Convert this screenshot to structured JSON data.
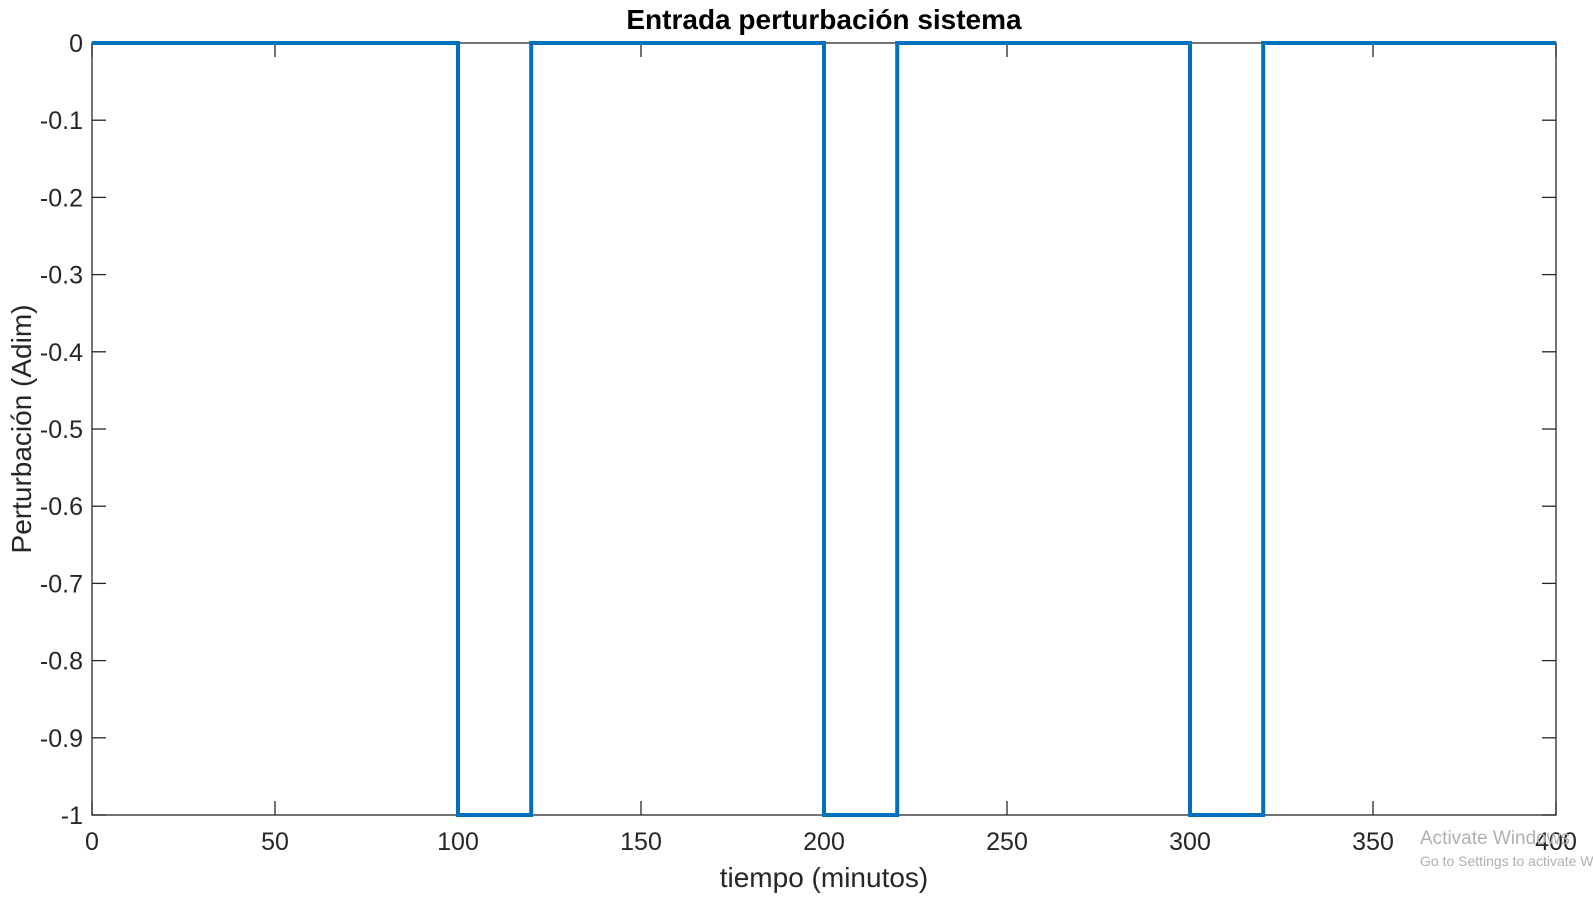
{
  "chart_data": {
    "type": "line",
    "title": "Entrada perturbación sistema",
    "xlabel": "tiempo (minutos)",
    "ylabel": "Perturbación (Adim)",
    "xlim": [
      0,
      400
    ],
    "ylim": [
      -1,
      0
    ],
    "x_ticks": [
      0,
      50,
      100,
      150,
      200,
      250,
      300,
      350,
      400
    ],
    "x_tick_labels": [
      "0",
      "50",
      "100",
      "150",
      "200",
      "250",
      "300",
      "350",
      "400"
    ],
    "y_ticks": [
      0,
      -0.1,
      -0.2,
      -0.3,
      -0.4,
      -0.5,
      -0.6,
      -0.7,
      -0.8,
      -0.9,
      -1
    ],
    "y_tick_labels": [
      "0",
      "-0.1",
      "-0.2",
      "-0.3",
      "-0.4",
      "-0.5",
      "-0.6",
      "-0.7",
      "-0.8",
      "-0.9",
      "-1"
    ],
    "grid": false,
    "series": [
      {
        "color": "#0072BD",
        "x": [
          0,
          100,
          100,
          120,
          120,
          200,
          200,
          220,
          220,
          300,
          300,
          320,
          320,
          400
        ],
        "y": [
          0,
          0,
          -1,
          -1,
          0,
          0,
          -1,
          -1,
          0,
          0,
          -1,
          -1,
          0,
          0
        ]
      }
    ]
  },
  "watermark": {
    "line1": "Activate Windows",
    "line2": "Go to Settings to activate Windows."
  },
  "colors": {
    "line": "#0072BD",
    "axes": "#262626",
    "background": "#ffffff"
  }
}
